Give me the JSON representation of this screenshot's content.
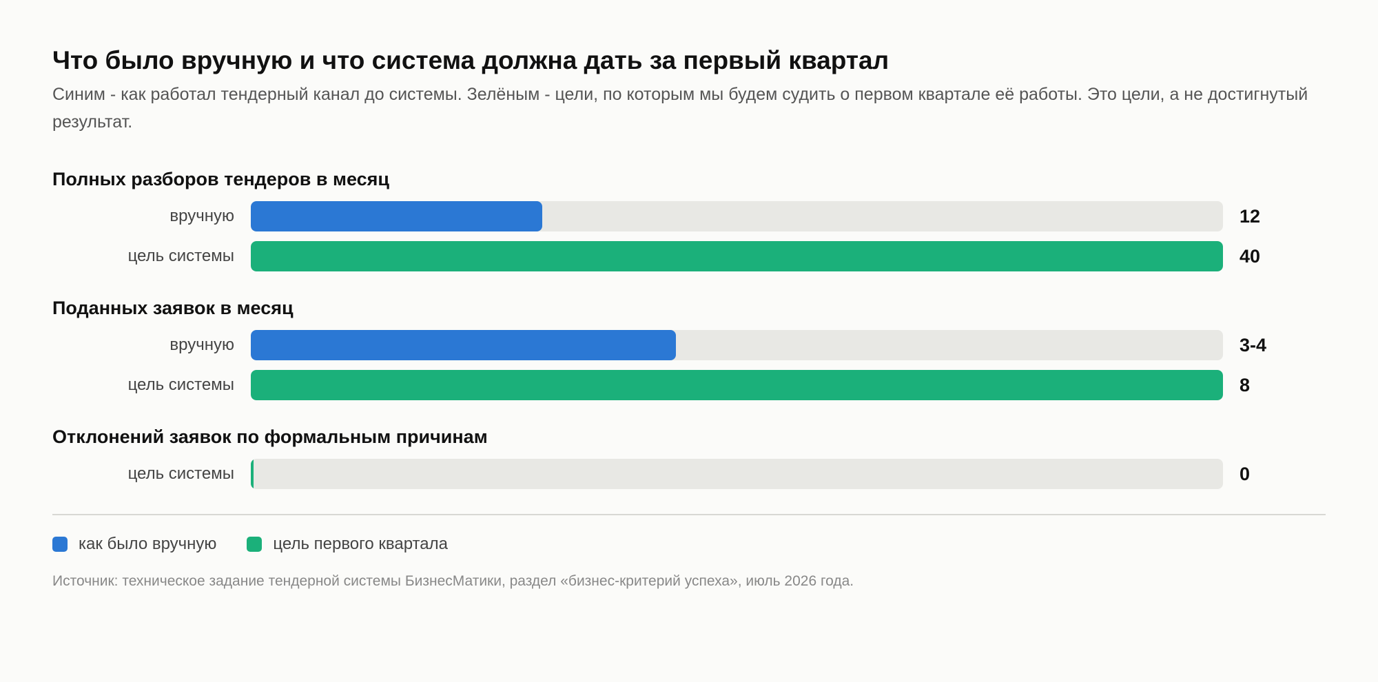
{
  "title": "Что было вручную и что система должна дать за первый квартал",
  "subtitle": "Синим - как работал тендерный канал до системы. Зелёным - цели, по которым мы будем судить о первом квартале её работы. Это цели, а не достигнутый результат.",
  "colors": {
    "manual": "#2b78d4",
    "goal": "#1bb07a",
    "track": "#e8e8e4"
  },
  "chart_data": {
    "type": "bar",
    "orientation": "horizontal",
    "groups": [
      {
        "title": "Полных разборов тендеров в месяц",
        "bars": [
          {
            "label": "вручную",
            "series": "manual",
            "value": 12,
            "value_label": "12",
            "fraction": 0.3
          },
          {
            "label": "цель системы",
            "series": "goal",
            "value": 40,
            "value_label": "40",
            "fraction": 1.0
          }
        ]
      },
      {
        "title": "Поданных заявок в месяц",
        "bars": [
          {
            "label": "вручную",
            "series": "manual",
            "value": 3.5,
            "value_label": "3-4",
            "fraction": 0.4375
          },
          {
            "label": "цель системы",
            "series": "goal",
            "value": 8,
            "value_label": "8",
            "fraction": 1.0
          }
        ]
      },
      {
        "title": "Отклонений заявок по формальным причинам",
        "bars": [
          {
            "label": "цель системы",
            "series": "goal",
            "value": 0,
            "value_label": "0",
            "fraction": 0.0
          }
        ]
      }
    ],
    "legend": [
      {
        "series": "manual",
        "label": "как было вручную"
      },
      {
        "series": "goal",
        "label": "цель первого квартала"
      }
    ]
  },
  "source": "Источник: техническое задание тендерной системы БизнесМатики, раздел «бизнес-критерий успеха», июль 2026 года."
}
